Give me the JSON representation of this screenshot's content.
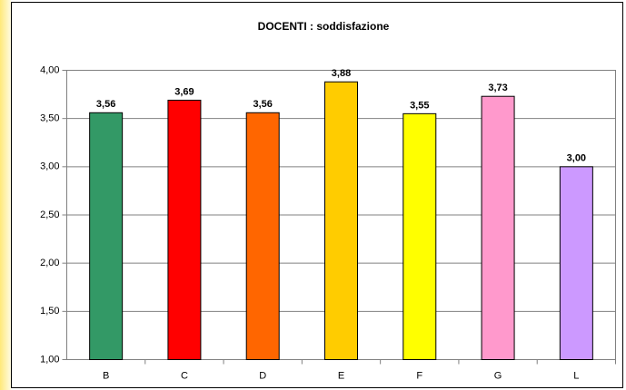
{
  "chart_data": {
    "type": "bar",
    "title": "DOCENTI : soddisfazione",
    "categories": [
      "B",
      "C",
      "D",
      "E",
      "F",
      "G",
      "L"
    ],
    "values": [
      3.56,
      3.69,
      3.56,
      3.88,
      3.55,
      3.73,
      3.0
    ],
    "value_labels": [
      "3,56",
      "3,69",
      "3,56",
      "3,88",
      "3,55",
      "3,73",
      "3,00"
    ],
    "colors": [
      "#339966",
      "#ff0000",
      "#ff6600",
      "#ffcc00",
      "#ffff00",
      "#ff99cc",
      "#cc99ff"
    ],
    "ylim": [
      1,
      4
    ],
    "yticks": [
      {
        "value": 1,
        "label": "1,00"
      },
      {
        "value": 1.5,
        "label": "1,50"
      },
      {
        "value": 2,
        "label": "2,00"
      },
      {
        "value": 2.5,
        "label": "2,50"
      },
      {
        "value": 3,
        "label": "3,00"
      },
      {
        "value": 3.5,
        "label": "3,50"
      },
      {
        "value": 4,
        "label": "4,00"
      }
    ],
    "grid": true
  }
}
